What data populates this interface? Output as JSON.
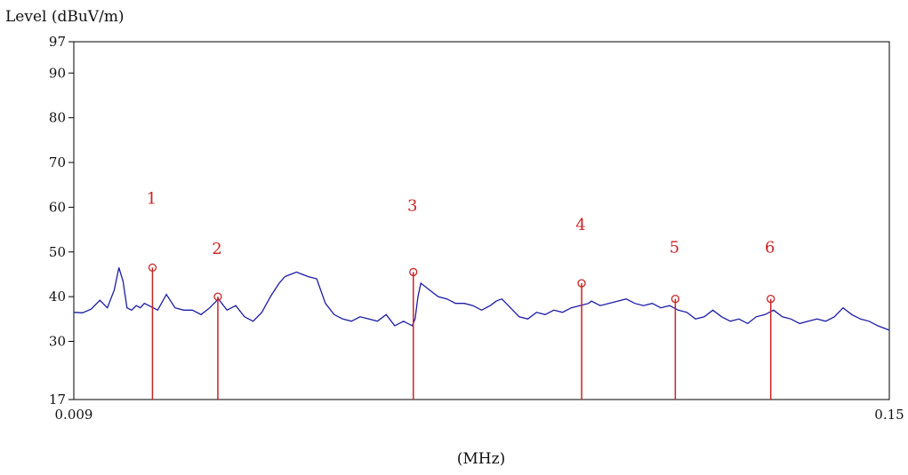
{
  "chart_data": {
    "type": "line",
    "title": "",
    "ylabel": "Level (dBuV/m)",
    "xlabel": "(MHz)",
    "xlim": [
      0.009,
      0.15
    ],
    "ylim": [
      17,
      97
    ],
    "x_tick_labels": [
      "0.009",
      "0.15"
    ],
    "x_ticks": [
      0.009,
      0.15
    ],
    "y_ticks": [
      17,
      30,
      40,
      50,
      60,
      70,
      80,
      90,
      97
    ],
    "y_tick_labels": [
      "17",
      "30",
      "40",
      "50",
      "60",
      "70",
      "80",
      "90",
      "97"
    ],
    "grid": false,
    "line_color": "#1a1aa8",
    "marker_color": "#cc2222",
    "series": [
      {
        "x": [
          0.009,
          0.0105,
          0.012,
          0.0135,
          0.0148,
          0.016,
          0.0168,
          0.0175,
          0.0182,
          0.019,
          0.0198,
          0.0205,
          0.0212,
          0.022,
          0.0235,
          0.025,
          0.0265,
          0.028,
          0.0295,
          0.031,
          0.0325,
          0.034,
          0.0355,
          0.037,
          0.0385,
          0.04,
          0.0415,
          0.043,
          0.0445,
          0.0455,
          0.0465,
          0.0475,
          0.0485,
          0.0495,
          0.051,
          0.0525,
          0.054,
          0.0555,
          0.057,
          0.0585,
          0.06,
          0.0615,
          0.063,
          0.0645,
          0.066,
          0.0675,
          0.068,
          0.0685,
          0.069,
          0.0695,
          0.0705,
          0.072,
          0.0735,
          0.075,
          0.0765,
          0.078,
          0.0795,
          0.081,
          0.082,
          0.083,
          0.0845,
          0.086,
          0.0875,
          0.089,
          0.0905,
          0.092,
          0.0935,
          0.095,
          0.0965,
          0.098,
          0.0985,
          0.1,
          0.1015,
          0.103,
          0.1045,
          0.106,
          0.1075,
          0.109,
          0.1105,
          0.112,
          0.1135,
          0.115,
          0.1165,
          0.118,
          0.1195,
          0.121,
          0.1225,
          0.124,
          0.1255,
          0.127,
          0.1285,
          0.13,
          0.1315,
          0.133,
          0.1345,
          0.136,
          0.1375,
          0.139,
          0.1405,
          0.142,
          0.1435,
          0.145,
          0.1465,
          0.148,
          0.15
        ],
        "y": [
          36.5,
          36.4,
          37.2,
          39.2,
          37.5,
          41.5,
          46.5,
          43.5,
          37.5,
          37.0,
          38.0,
          37.5,
          38.5,
          38.0,
          37.0,
          40.5,
          37.5,
          37.0,
          37.0,
          36.0,
          37.5,
          39.5,
          37.0,
          38.0,
          35.5,
          34.5,
          36.5,
          40.0,
          43.0,
          44.5,
          45.0,
          45.5,
          45.0,
          44.5,
          44.0,
          38.5,
          36.0,
          35.0,
          34.5,
          35.5,
          35.0,
          34.5,
          36.0,
          33.5,
          34.5,
          33.5,
          35.0,
          40.0,
          43.0,
          42.5,
          41.5,
          40.0,
          39.5,
          38.5,
          38.5,
          38.0,
          37.0,
          38.0,
          39.0,
          39.5,
          37.5,
          35.5,
          35.0,
          36.5,
          36.0,
          37.0,
          36.5,
          37.5,
          38.0,
          38.5,
          39.0,
          38.0,
          38.5,
          39.0,
          39.5,
          38.5,
          38.0,
          38.5,
          37.5,
          38.0,
          37.0,
          36.5,
          35.0,
          35.5,
          37.0,
          35.5,
          34.5,
          35.0,
          34.0,
          35.5,
          36.0,
          37.0,
          35.5,
          35.0,
          34.0,
          34.5,
          35.0,
          34.5,
          35.5,
          37.5,
          36.0,
          35.0,
          34.5,
          33.5,
          32.5
        ]
      }
    ],
    "markers": [
      {
        "label": "1",
        "x": 0.0226,
        "y": 46.5
      },
      {
        "label": "2",
        "x": 0.0339,
        "y": 40.0
      },
      {
        "label": "3",
        "x": 0.0677,
        "y": 45.5
      },
      {
        "label": "4",
        "x": 0.0968,
        "y": 43.0
      },
      {
        "label": "5",
        "x": 0.113,
        "y": 39.5
      },
      {
        "label": "6",
        "x": 0.1295,
        "y": 39.5
      }
    ]
  }
}
